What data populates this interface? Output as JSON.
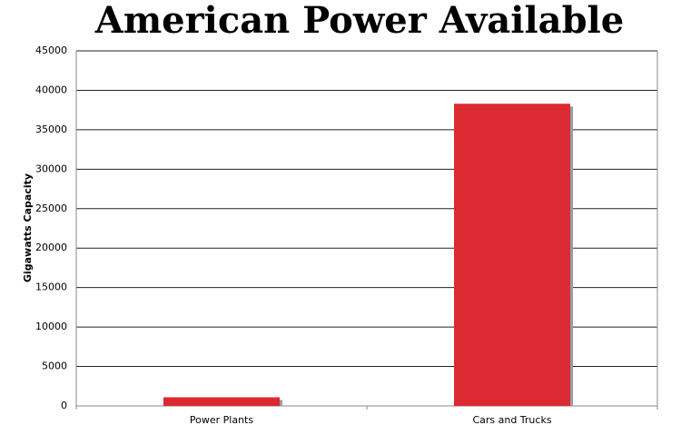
{
  "chart_data": {
    "type": "bar",
    "title": "American Power Available",
    "y_label": "Gigawatts Capacity",
    "categories": [
      "Power Plants",
      "Cars and Trucks"
    ],
    "values": [
      1100,
      38300
    ],
    "color": "#dc2a32",
    "ylim": [
      0,
      45000
    ],
    "yticks": [
      0,
      5000,
      10000,
      15000,
      20000,
      25000,
      30000,
      35000,
      40000,
      45000
    ],
    "grid": true
  }
}
